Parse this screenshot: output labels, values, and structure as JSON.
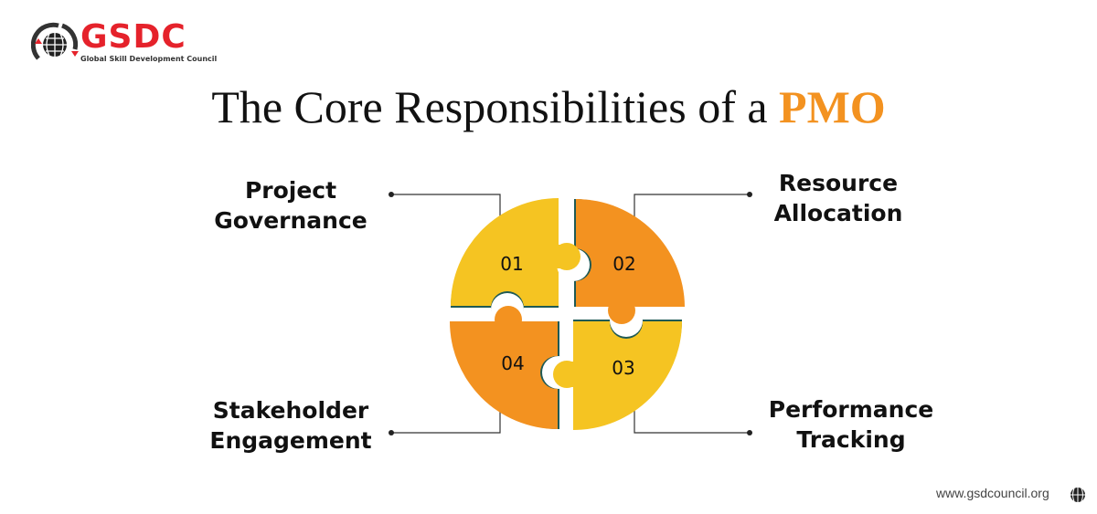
{
  "logo": {
    "name": "GSDC",
    "tagline": "Global Skill Development Council"
  },
  "title": {
    "prefix": "The Core Responsibilities of a ",
    "highlight": "PMO"
  },
  "colors": {
    "yellow": "#f5c422",
    "orange": "#f39220",
    "accent": "#e5222b",
    "edge": "#1f5a55"
  },
  "pieces": [
    {
      "number": "01",
      "label_line1": "Project",
      "label_line2": "Governance"
    },
    {
      "number": "02",
      "label_line1": "Resource",
      "label_line2": "Allocation"
    },
    {
      "number": "03",
      "label_line1": "Performance",
      "label_line2": "Tracking"
    },
    {
      "number": "04",
      "label_line1": "Stakeholder",
      "label_line2": "Engagement"
    }
  ],
  "footer": {
    "url": "www.gsdcouncil.org",
    "icon": "globe-icon"
  }
}
